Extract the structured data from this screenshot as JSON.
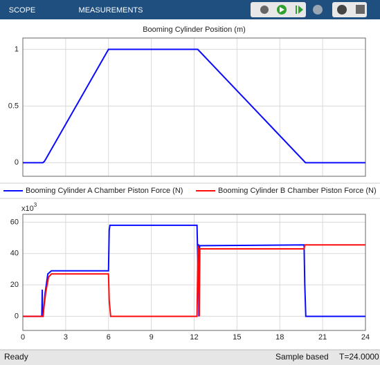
{
  "toolbar": {
    "tabs": [
      "SCOPE",
      "MEASUREMENTS"
    ]
  },
  "status": {
    "left": "Ready",
    "mode": "Sample based",
    "time": "T=24.0000"
  },
  "chart_data": [
    {
      "type": "line",
      "title": "Booming Cylinder Position (m)",
      "xlim": [
        0,
        24
      ],
      "xticks": [
        0,
        3,
        6,
        9,
        12,
        15,
        18,
        21,
        24
      ],
      "show_xtick_labels": false,
      "ylim": [
        -0.12,
        1.1
      ],
      "yticks": [
        0,
        0.5,
        1
      ],
      "grid": true,
      "series": [
        {
          "color": "#0a0aff",
          "x": [
            0,
            1.4,
            1.5,
            1.6,
            6.0,
            12.25,
            19.8,
            24
          ],
          "values": [
            0,
            0,
            0.01,
            0.03,
            1,
            1,
            0,
            0
          ]
        }
      ]
    },
    {
      "type": "line",
      "legend": "top",
      "y_exponent": {
        "base": "x10",
        "power": "3"
      },
      "xlim": [
        0,
        24
      ],
      "xticks": [
        0,
        3,
        6,
        9,
        12,
        15,
        18,
        21,
        24
      ],
      "show_xtick_labels": true,
      "ylim": [
        -9,
        65
      ],
      "yticks": [
        0,
        20,
        40,
        60
      ],
      "grid": true,
      "series": [
        {
          "name": "Booming Cylinder A Chamber Piston Force (N)",
          "color": "#0a0aff",
          "x": [
            0,
            1.33,
            1.36,
            1.38,
            1.42,
            1.55,
            1.75,
            2.0,
            6.0,
            6.05,
            6.1,
            6.2,
            12.2,
            12.27,
            12.3,
            12.33,
            12.38,
            12.45,
            19.7,
            19.75,
            19.82,
            24
          ],
          "values": [
            0,
            0,
            17,
            0,
            0,
            14,
            27,
            29,
            29,
            55,
            58,
            58,
            58,
            30,
            46,
            0,
            45,
            45,
            45.5,
            20,
            0,
            0
          ]
        },
        {
          "name": "Booming Cylinder B Chamber Piston Force (N)",
          "color": "#ff0a0a",
          "x": [
            0,
            1.4,
            1.6,
            1.8,
            2.0,
            6.0,
            6.05,
            6.15,
            12.2,
            12.27,
            12.32,
            12.36,
            12.4,
            19.7,
            19.75,
            24
          ],
          "values": [
            0,
            0,
            15,
            25,
            27,
            27,
            10,
            0,
            0,
            45,
            20,
            0,
            43,
            43,
            45.5,
            45.5
          ]
        }
      ]
    }
  ]
}
